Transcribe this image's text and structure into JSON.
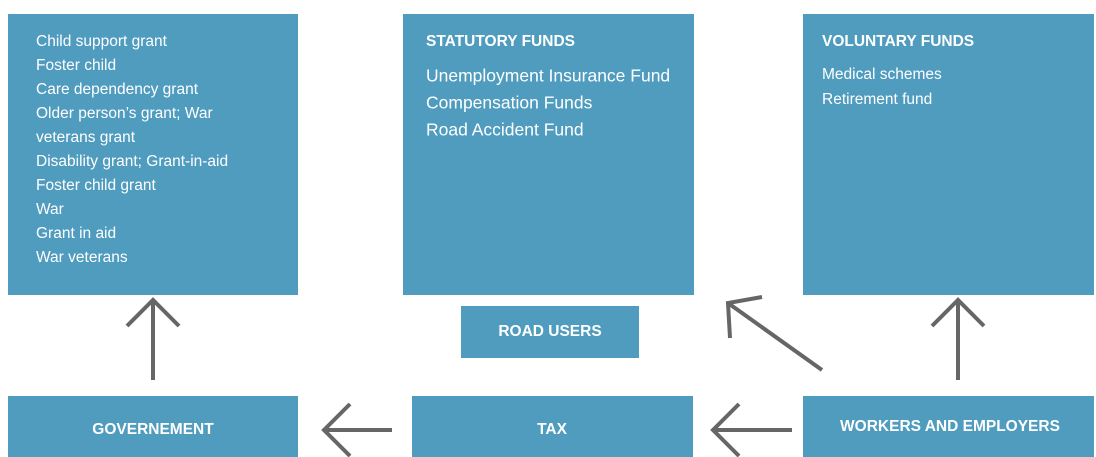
{
  "nodes": [
    {
      "label": null,
      "items": [
        "Child support grant",
        "Foster child",
        "Care dependency grant",
        "Older person’s grant; War",
        "veterans grant",
        "Disability grant; Grant-in-aid",
        "Foster child grant",
        "War",
        "Grant in aid",
        "War veterans"
      ]
    },
    {
      "label": "STATUTORY FUNDS",
      "items": [
        "Unemployment Insurance Fund",
        "Compensation Funds",
        "Road Accident Fund"
      ]
    },
    {
      "label": "VOLUNTARY FUNDS",
      "items": [
        "Medical schemes",
        "Retirement fund"
      ]
    },
    {
      "label": "ROAD USERS"
    },
    {
      "label": "GOVERNEMENT"
    },
    {
      "label": "TAX"
    },
    {
      "label": "WORKERS AND EMPLOYERS"
    }
  ]
}
